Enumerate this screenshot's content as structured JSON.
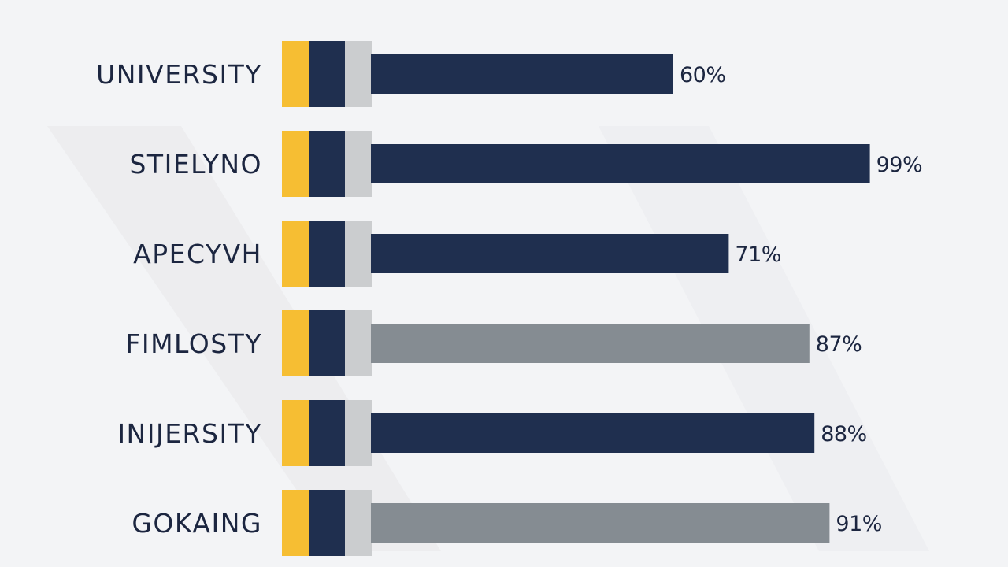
{
  "chart_data": {
    "type": "bar",
    "orientation": "horizontal",
    "categories": [
      "UNIVERSITY",
      "STIELYNO",
      "APECYVH",
      "FIMLOSTY",
      "INIJERSITY",
      "GOKAING"
    ],
    "values": [
      60,
      99,
      71,
      87,
      88,
      91
    ],
    "value_labels": [
      "60%",
      "99%",
      "71%",
      "87%",
      "88%",
      "91%"
    ],
    "bar_colors": [
      "#1f2f4f",
      "#1f2f4f",
      "#1f2f4f",
      "#858c92",
      "#1f2f4f",
      "#858c92"
    ],
    "swatch_colors": [
      "#f6be33",
      "#1f2f4f",
      "#cbcdcf"
    ],
    "xlim": [
      0,
      100
    ],
    "grid": false,
    "legend": "none",
    "title": "",
    "xlabel": "",
    "ylabel": ""
  },
  "colors": {
    "background": "#f3f4f6",
    "text": "#1c2640",
    "navy": "#1f2f4f",
    "gray": "#858c92",
    "gold": "#f6be33",
    "light_gray": "#cbcdcf"
  }
}
